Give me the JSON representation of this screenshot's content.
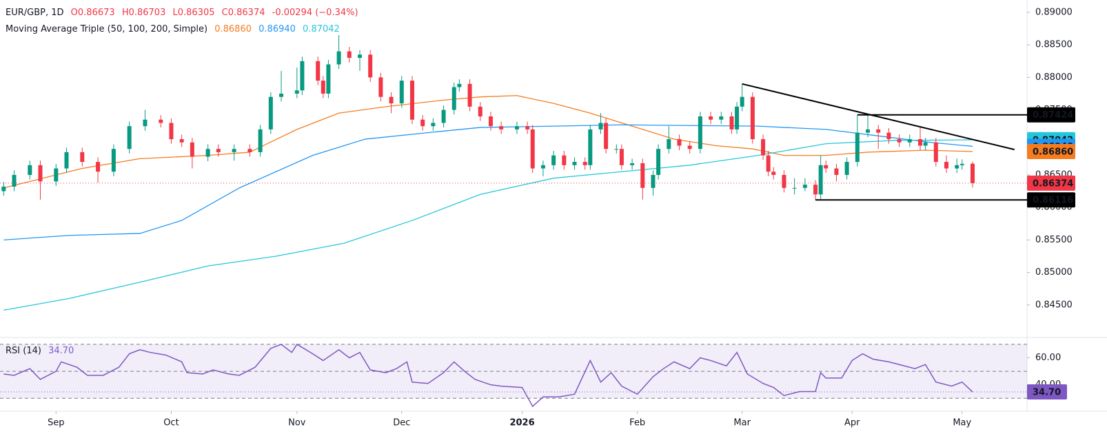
{
  "header": {
    "symbol": "EUR/GBP, 1D",
    "open": "O0.86673",
    "high": "H0.86703",
    "low": "L0.86305",
    "close": "C0.86374",
    "change": "-0.00294 (−0.34%)",
    "ma_title": "Moving Average Triple (50, 100, 200, Simple)",
    "ma50": "0.86860",
    "ma100": "0.86940",
    "ma200": "0.87042",
    "rsi_title": "RSI (14)",
    "rsi_value": "34.70"
  },
  "chart_data": {
    "type": "candlestick",
    "xlim": [
      -0.7,
      195.4
    ],
    "ylim": [
      0.84,
      0.8919
    ],
    "xticks": [
      {
        "value": 10,
        "label": "Sep"
      },
      {
        "value": 32,
        "label": "Oct"
      },
      {
        "value": 56,
        "label": "Nov"
      },
      {
        "value": 76,
        "label": "Dec"
      },
      {
        "value": 99,
        "label": "2026"
      },
      {
        "value": 121,
        "label": "Feb"
      },
      {
        "value": 141,
        "label": "Mar"
      },
      {
        "value": 162,
        "label": "Apr"
      },
      {
        "value": 183,
        "label": "May"
      }
    ],
    "yticks": [
      {
        "value": 0.89,
        "label": "0.89000"
      },
      {
        "value": 0.885,
        "label": "0.88500"
      },
      {
        "value": 0.88,
        "label": "0.88000"
      },
      {
        "value": 0.875,
        "label": "0.87500"
      },
      {
        "value": 0.87,
        "label": "0.87000"
      },
      {
        "value": 0.865,
        "label": "0.86500"
      },
      {
        "value": 0.86,
        "label": "0.86000"
      },
      {
        "value": 0.855,
        "label": "0.85500"
      },
      {
        "value": 0.85,
        "label": "0.85000"
      },
      {
        "value": 0.845,
        "label": "0.84500"
      }
    ],
    "up_color": "#089981",
    "down_color": "#f23645",
    "candles": {
      "x": [
        0,
        2,
        5,
        7,
        10,
        12,
        15,
        18,
        21,
        24,
        27,
        30,
        32,
        34,
        36,
        39,
        41,
        44,
        47,
        49,
        51,
        53,
        56,
        57,
        60,
        61,
        62,
        64,
        66,
        68,
        70,
        72,
        74,
        76,
        78,
        80,
        82,
        84,
        86,
        87,
        89,
        91,
        93,
        95,
        98,
        100,
        101,
        103,
        105,
        107,
        109,
        111,
        112,
        114,
        115,
        117,
        118,
        120,
        122,
        124,
        125,
        127,
        129,
        131,
        133,
        135,
        137,
        139,
        140,
        141,
        143,
        145,
        146,
        147,
        149,
        151,
        153,
        155,
        156,
        157,
        159,
        161,
        163,
        165,
        167,
        169,
        171,
        173,
        175,
        176,
        178,
        180,
        182,
        183,
        185
      ],
      "open": [
        0.8625,
        0.8632,
        0.865,
        0.8665,
        0.864,
        0.866,
        0.8685,
        0.867,
        0.8655,
        0.869,
        0.8725,
        0.8735,
        0.873,
        0.8705,
        0.87,
        0.8678,
        0.869,
        0.8685,
        0.869,
        0.8685,
        0.872,
        0.877,
        0.8775,
        0.878,
        0.8825,
        0.8795,
        0.8775,
        0.882,
        0.884,
        0.883,
        0.8835,
        0.88,
        0.877,
        0.876,
        0.8795,
        0.8735,
        0.8725,
        0.873,
        0.875,
        0.8785,
        0.879,
        0.8755,
        0.874,
        0.8725,
        0.872,
        0.8725,
        0.872,
        0.866,
        0.8665,
        0.868,
        0.8665,
        0.867,
        0.8665,
        0.872,
        0.873,
        0.869,
        0.869,
        0.8665,
        0.8668,
        0.863,
        0.865,
        0.869,
        0.8705,
        0.8695,
        0.869,
        0.874,
        0.8735,
        0.874,
        0.872,
        0.8755,
        0.877,
        0.8705,
        0.868,
        0.8655,
        0.865,
        0.863,
        0.863,
        0.8635,
        0.862,
        0.8665,
        0.866,
        0.865,
        0.867,
        0.8715,
        0.872,
        0.8715,
        0.8705,
        0.87,
        0.8705,
        0.8695,
        0.87,
        0.867,
        0.866,
        0.8665,
        0.86673
      ],
      "high": [
        0.8639,
        0.8657,
        0.8672,
        0.8672,
        0.8667,
        0.8692,
        0.8692,
        0.8677,
        0.8697,
        0.8732,
        0.875,
        0.8742,
        0.8737,
        0.8712,
        0.8707,
        0.8697,
        0.8697,
        0.8697,
        0.8697,
        0.8727,
        0.8777,
        0.881,
        0.8815,
        0.8832,
        0.8832,
        0.8802,
        0.8827,
        0.8865,
        0.8847,
        0.8842,
        0.8842,
        0.8807,
        0.8777,
        0.8802,
        0.8802,
        0.8742,
        0.8737,
        0.8757,
        0.8792,
        0.8797,
        0.8797,
        0.8762,
        0.8747,
        0.8732,
        0.8732,
        0.8732,
        0.8727,
        0.8672,
        0.8687,
        0.8687,
        0.8677,
        0.8677,
        0.8727,
        0.8745,
        0.8737,
        0.8697,
        0.8697,
        0.8675,
        0.8675,
        0.8657,
        0.8697,
        0.8725,
        0.8712,
        0.8702,
        0.8747,
        0.8747,
        0.8747,
        0.8747,
        0.8762,
        0.879,
        0.8777,
        0.8712,
        0.8687,
        0.8662,
        0.8657,
        0.8645,
        0.8645,
        0.8642,
        0.868,
        0.8672,
        0.8667,
        0.8677,
        0.8742,
        0.8742,
        0.8727,
        0.8722,
        0.8712,
        0.8712,
        0.8725,
        0.8707,
        0.8707,
        0.868,
        0.8675,
        0.8674,
        0.86703
      ],
      "low": [
        0.8618,
        0.8625,
        0.8643,
        0.8612,
        0.8633,
        0.8653,
        0.8663,
        0.8638,
        0.8648,
        0.8683,
        0.8718,
        0.8723,
        0.8698,
        0.8693,
        0.866,
        0.8671,
        0.8678,
        0.8672,
        0.8678,
        0.8678,
        0.8713,
        0.8763,
        0.8768,
        0.8773,
        0.8788,
        0.8768,
        0.8768,
        0.8813,
        0.8823,
        0.881,
        0.8793,
        0.8763,
        0.8745,
        0.8753,
        0.8728,
        0.8718,
        0.8718,
        0.8723,
        0.8743,
        0.8778,
        0.8748,
        0.8733,
        0.8718,
        0.8713,
        0.8713,
        0.8713,
        0.8653,
        0.8648,
        0.8658,
        0.8658,
        0.8658,
        0.8658,
        0.8658,
        0.8713,
        0.8683,
        0.8683,
        0.8658,
        0.8658,
        0.8612,
        0.8618,
        0.8643,
        0.8683,
        0.8688,
        0.8683,
        0.8683,
        0.8728,
        0.8728,
        0.8713,
        0.8713,
        0.8748,
        0.8698,
        0.8673,
        0.8648,
        0.8643,
        0.8623,
        0.862,
        0.8625,
        0.86116,
        0.8613,
        0.8653,
        0.864,
        0.8643,
        0.8663,
        0.8708,
        0.869,
        0.8698,
        0.8693,
        0.8693,
        0.8688,
        0.8688,
        0.8663,
        0.8653,
        0.8653,
        0.8658,
        0.86305
      ],
      "close": [
        0.8632,
        0.865,
        0.8665,
        0.864,
        0.866,
        0.8685,
        0.867,
        0.8655,
        0.869,
        0.8725,
        0.8735,
        0.873,
        0.8705,
        0.87,
        0.8678,
        0.869,
        0.8685,
        0.869,
        0.8685,
        0.872,
        0.877,
        0.8775,
        0.878,
        0.8825,
        0.8795,
        0.8775,
        0.882,
        0.884,
        0.883,
        0.8835,
        0.88,
        0.877,
        0.876,
        0.8795,
        0.8735,
        0.8725,
        0.873,
        0.875,
        0.8785,
        0.879,
        0.8755,
        0.874,
        0.8725,
        0.872,
        0.8725,
        0.872,
        0.866,
        0.8665,
        0.868,
        0.8665,
        0.867,
        0.8665,
        0.872,
        0.873,
        0.869,
        0.869,
        0.8665,
        0.8668,
        0.863,
        0.865,
        0.869,
        0.8705,
        0.8695,
        0.869,
        0.874,
        0.8735,
        0.874,
        0.872,
        0.8755,
        0.877,
        0.8705,
        0.868,
        0.8655,
        0.865,
        0.863,
        0.863,
        0.8635,
        0.862,
        0.8665,
        0.866,
        0.865,
        0.867,
        0.8715,
        0.872,
        0.8715,
        0.8705,
        0.87,
        0.8705,
        0.8695,
        0.87,
        0.867,
        0.866,
        0.8665,
        0.8667,
        0.86374
      ]
    },
    "series": [
      {
        "name": "MA 50",
        "color": "#f57c1f",
        "x": [
          0,
          15,
          26,
          39,
          47,
          56,
          64,
          73,
          84,
          91,
          98,
          105,
          112,
          120,
          128,
          136,
          143,
          149,
          157,
          165,
          176,
          185
        ],
        "values": [
          0.863,
          0.866,
          0.8675,
          0.868,
          0.8685,
          0.872,
          0.8745,
          0.8755,
          0.8765,
          0.877,
          0.8772,
          0.876,
          0.8745,
          0.8725,
          0.8705,
          0.8695,
          0.869,
          0.868,
          0.868,
          0.8685,
          0.8688,
          0.8686
        ]
      },
      {
        "name": "MA 100",
        "color": "#2196f3",
        "x": [
          0,
          12.5,
          26,
          34,
          45,
          59,
          69,
          81,
          91,
          105,
          118,
          131,
          144,
          157,
          167,
          177,
          185
        ],
        "values": [
          0.855,
          0.8557,
          0.856,
          0.858,
          0.863,
          0.868,
          0.8705,
          0.8715,
          0.8723,
          0.8725,
          0.8727,
          0.8726,
          0.8725,
          0.872,
          0.871,
          0.87,
          0.8694
        ]
      },
      {
        "name": "MA 200",
        "color": "#26c6da",
        "x": [
          0,
          12.5,
          26,
          39,
          52,
          65,
          78,
          91,
          105,
          118,
          131,
          144,
          157,
          170,
          185
        ],
        "values": [
          0.8442,
          0.846,
          0.8485,
          0.851,
          0.8525,
          0.8545,
          0.858,
          0.862,
          0.8645,
          0.8655,
          0.8665,
          0.868,
          0.8698,
          0.8703,
          0.8704
        ]
      }
    ],
    "lines": [
      {
        "x": [
          141,
          193
        ],
        "y": [
          0.879,
          0.8689
        ]
      },
      {
        "x": [
          163,
          195.4
        ],
        "y": [
          0.87424,
          0.87424
        ]
      },
      {
        "x": [
          155,
          195.4
        ],
        "y": [
          0.86116,
          0.86116
        ]
      }
    ],
    "last_price": 0.86374,
    "price_labels": [
      {
        "value": 0.87424,
        "label": "0.87424",
        "color": "#000000"
      },
      {
        "value": 0.87042,
        "label": "0.87042",
        "color": "#26c6da"
      },
      {
        "value": 0.8694,
        "label": "0.86940",
        "color": "#2196f3"
      },
      {
        "value": 0.8686,
        "label": "0.86860",
        "color": "#f57c1f"
      },
      {
        "value": 0.86374,
        "label": "0.86374",
        "color": "#f23645"
      },
      {
        "value": 0.86116,
        "label": "0.86116",
        "color": "#000000"
      }
    ],
    "rsi": {
      "color": "#7e57c2",
      "ylim": [
        24,
        71.5
      ],
      "bands": [
        30,
        50,
        70
      ],
      "yticks": [
        {
          "value": 60,
          "label": "60.00"
        },
        {
          "value": 40,
          "label": "40.00"
        }
      ],
      "x": [
        0,
        2,
        5,
        7,
        10,
        11,
        14,
        16,
        19,
        22,
        24,
        26,
        28,
        31,
        34,
        35,
        38,
        40,
        43,
        45,
        48,
        51,
        53,
        55,
        56,
        59,
        61,
        64,
        66,
        68,
        70,
        73,
        75,
        77,
        78,
        81,
        84,
        86,
        88,
        90,
        93,
        95,
        99,
        101,
        103,
        106,
        109,
        112,
        114,
        116,
        118,
        121,
        124,
        126,
        128,
        131,
        133,
        135,
        138,
        140,
        142,
        145,
        147,
        149,
        152,
        155,
        156,
        157,
        160,
        162,
        164,
        166,
        169,
        172,
        174,
        176,
        178,
        181,
        183,
        185
      ],
      "values": [
        48,
        47,
        52,
        44,
        50,
        57,
        53,
        47,
        47,
        53,
        63,
        66,
        64,
        62,
        57,
        49,
        48,
        51,
        48,
        47,
        53,
        67,
        70,
        64,
        70,
        63,
        58,
        66,
        60,
        64,
        51,
        49,
        52,
        57,
        42,
        41,
        49,
        57,
        50,
        44,
        40,
        39,
        38,
        24,
        31,
        31,
        33,
        58,
        42,
        49,
        39,
        33,
        46,
        52,
        57,
        52,
        60,
        58,
        54,
        64,
        48,
        41,
        38,
        32,
        35,
        35,
        49,
        45,
        45,
        58,
        63,
        59,
        57,
        54,
        52,
        55,
        42,
        39,
        42,
        34.7
      ],
      "value_label": {
        "value": 34.7,
        "label": "34.70"
      }
    }
  }
}
